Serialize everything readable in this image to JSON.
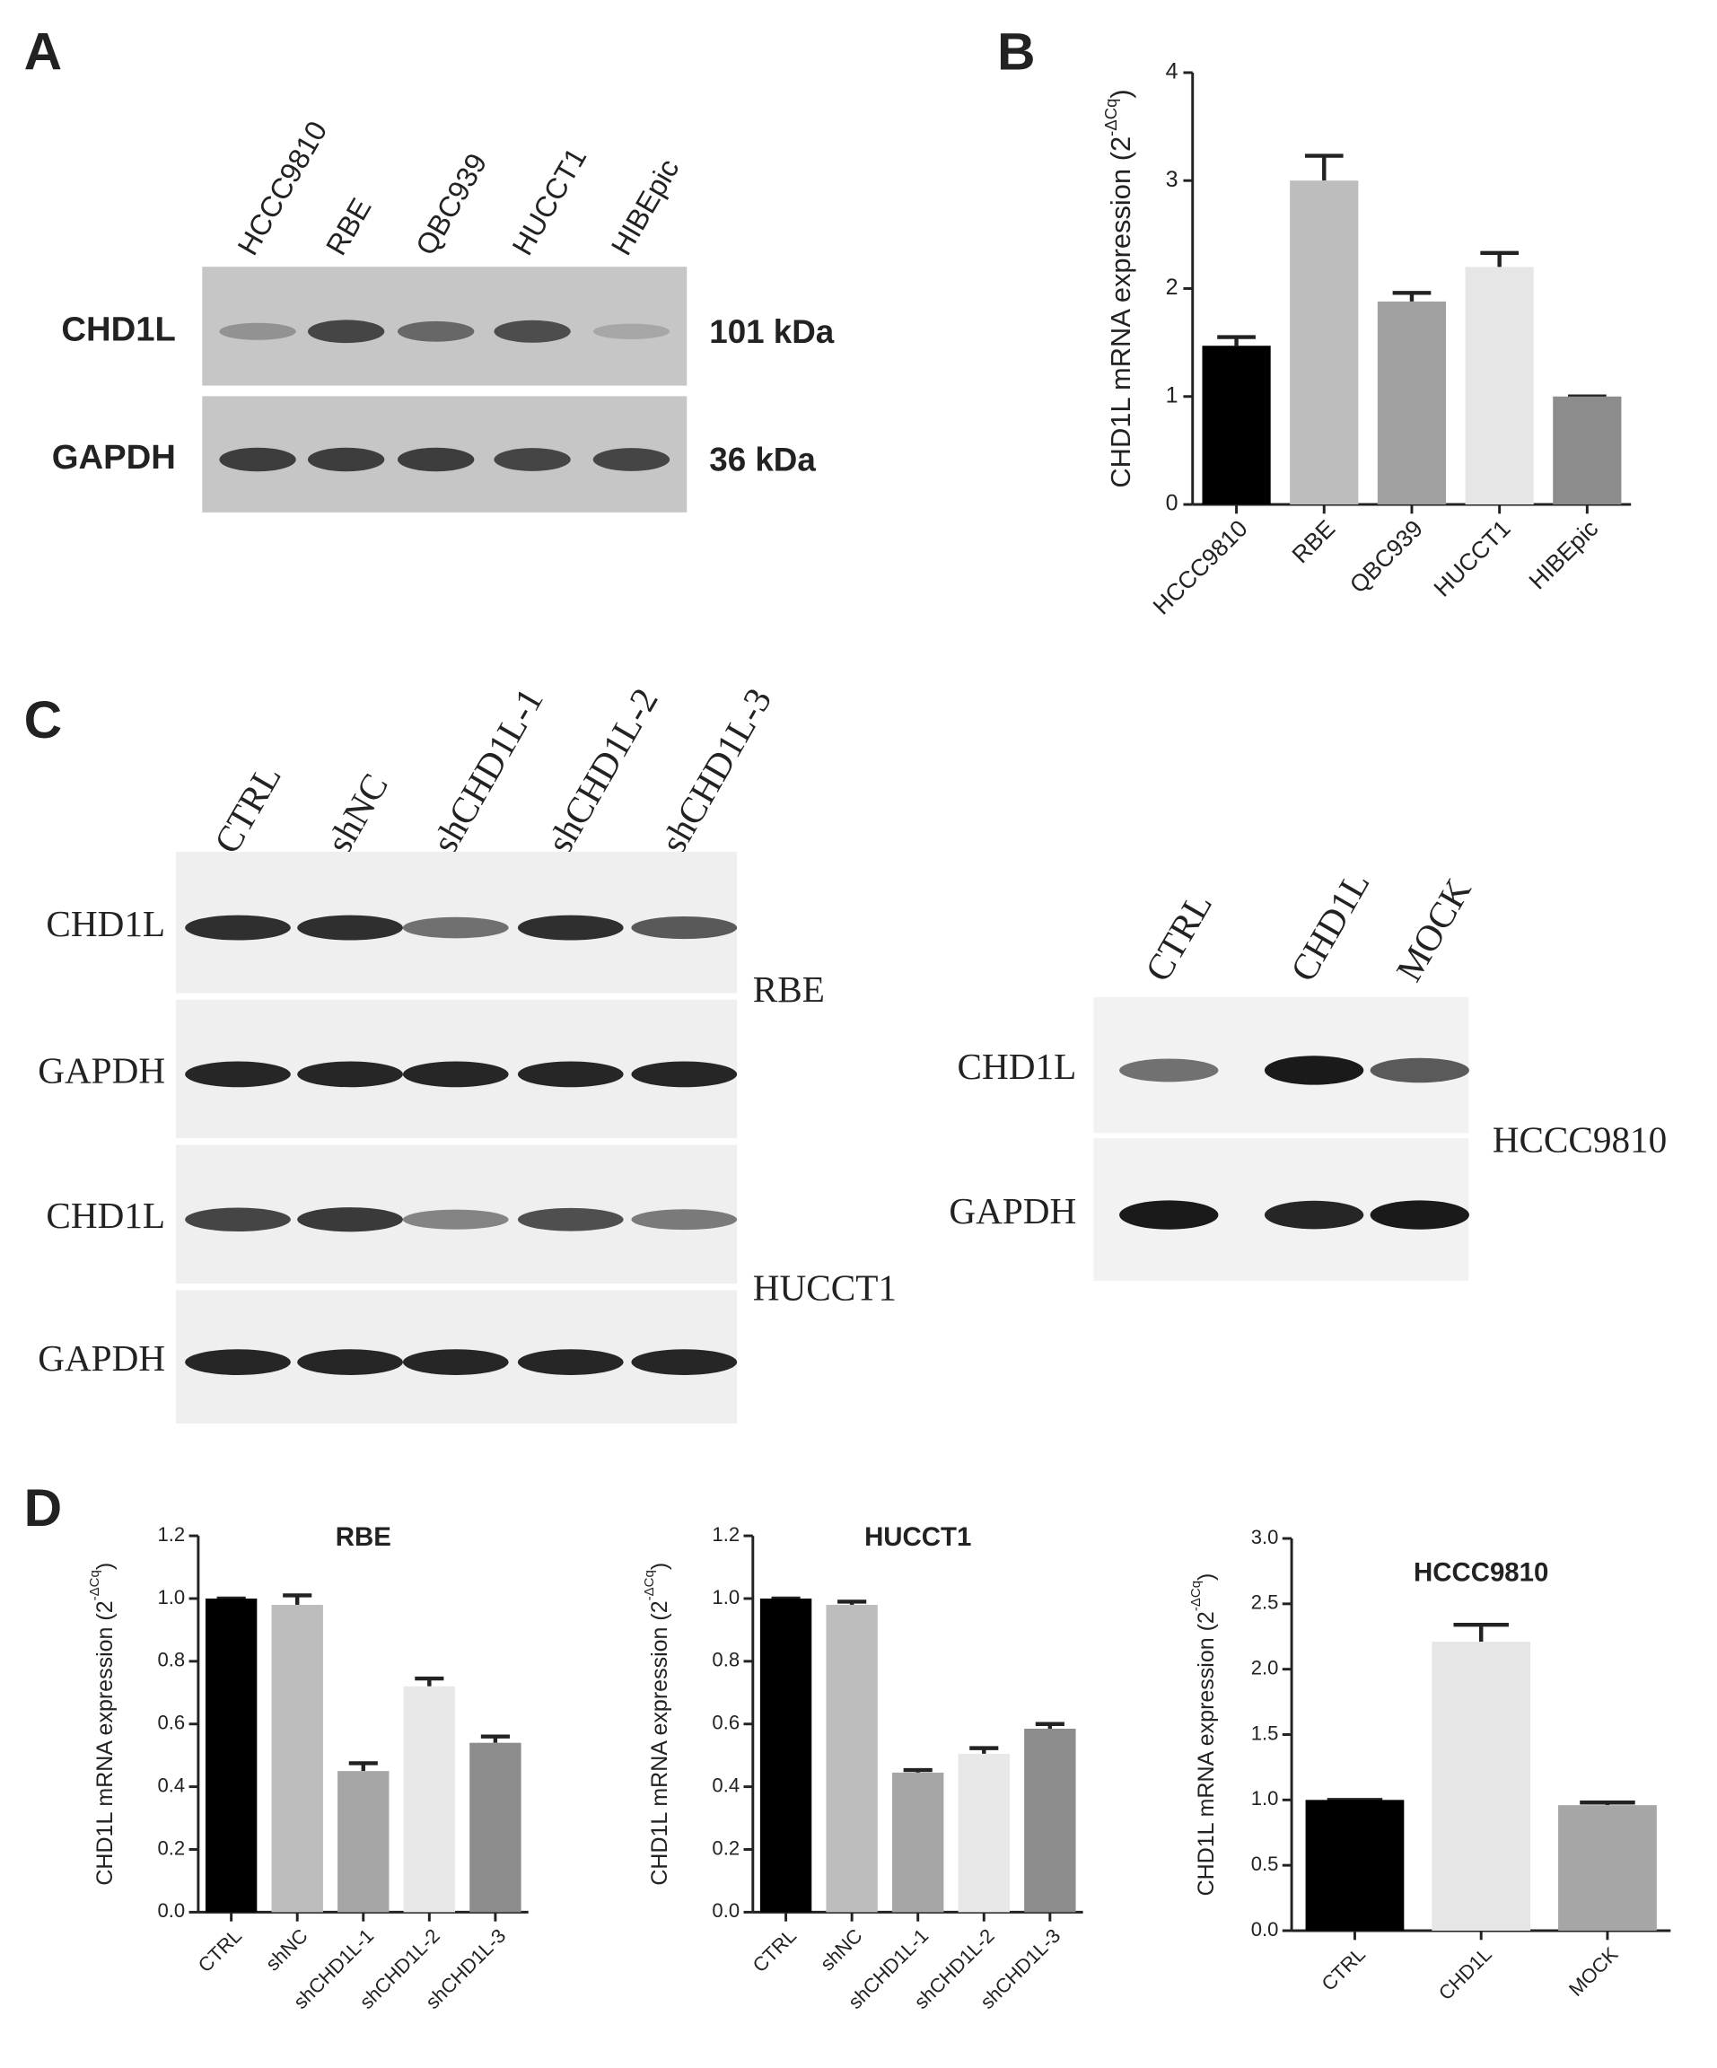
{
  "panel_labels": [
    "A",
    "B",
    "C",
    "D"
  ],
  "blots": [
    {
      "lanes": [
        "HCCC9810",
        "RBE",
        "QBC939",
        "HUCCT1",
        "HIBEpic"
      ],
      "rows": [
        "CHD1L",
        "GAPDH"
      ],
      "sizes": [
        "101 kDa",
        "36 kDa"
      ]
    },
    {
      "lanes": [
        "CTRL",
        "shNC",
        "shCHD1L-1",
        "shCHD1L-2",
        "shCHD1L-3"
      ],
      "rows": [
        "CHD1L",
        "GAPDH",
        "CHD1L",
        "GAPDH"
      ],
      "cell_lines": [
        "RBE",
        "HUCCT1"
      ]
    },
    {
      "lanes": [
        "CTRL",
        "CHD1L",
        "MOCK"
      ],
      "rows": [
        "CHD1L",
        "GAPDH"
      ],
      "cell_lines": [
        "HCCC9810"
      ]
    }
  ],
  "chart_data": [
    {
      "type": "bar",
      "ylabel": {
        "text": "CHD1L mRNA expression (2",
        "sup": "-ΔCq",
        "close": ")"
      },
      "categories": [
        "HCCC9810",
        "RBE",
        "QBC939",
        "HUCCT1",
        "HIBEpic"
      ],
      "values": [
        1.47,
        3.0,
        1.88,
        2.2,
        1.0
      ],
      "errors": [
        0.08,
        0.23,
        0.08,
        0.13,
        0
      ],
      "colors": [
        "#000000",
        "#bdbdbd",
        "#a0a0a0",
        "#e6e6e6",
        "#8c8c8c"
      ],
      "ylim": [
        0,
        4
      ],
      "yticks": [
        0,
        1,
        2,
        3,
        4
      ]
    },
    {
      "type": "bar",
      "title": "RBE",
      "ylabel": {
        "text": "CHD1L mRNA expression (2",
        "sup": "-ΔCq",
        "close": ")"
      },
      "categories": [
        "CTRL",
        "shNC",
        "shCHD1L-1",
        "shCHD1L-2",
        "shCHD1L-3"
      ],
      "values": [
        1.0,
        0.98,
        0.45,
        0.72,
        0.54
      ],
      "errors": [
        0,
        0.03,
        0.025,
        0.025,
        0.02
      ],
      "colors": [
        "#000000",
        "#bdbdbd",
        "#a6a6a6",
        "#e8e8e8",
        "#8c8c8c"
      ],
      "ylim": [
        0,
        1.2
      ],
      "yticks": [
        {
          "value": 0,
          "label": "0.0"
        },
        0.2,
        0.4,
        0.6,
        0.8,
        {
          "value": 1,
          "label": "1.0"
        },
        1.2
      ]
    },
    {
      "type": "bar",
      "title": "HUCCT1",
      "ylabel": {
        "text": "CHD1L mRNA expression (2",
        "sup": "-ΔCq",
        "close": ")"
      },
      "categories": [
        "CTRL",
        "shNC",
        "shCHD1L-1",
        "shCHD1L-2",
        "shCHD1L-3"
      ],
      "values": [
        1.0,
        0.98,
        0.445,
        0.505,
        0.585
      ],
      "errors": [
        0,
        0.01,
        0.008,
        0.018,
        0.015
      ],
      "colors": [
        "#000000",
        "#bdbdbd",
        "#a6a6a6",
        "#e8e8e8",
        "#8c8c8c"
      ],
      "ylim": [
        0,
        1.2
      ],
      "yticks": [
        {
          "value": 0,
          "label": "0.0"
        },
        0.2,
        0.4,
        0.6,
        0.8,
        {
          "value": 1,
          "label": "1.0"
        },
        1.2
      ]
    },
    {
      "type": "bar",
      "title": "HCCC9810",
      "ylabel": {
        "text": "CHD1L mRNA expression (2",
        "sup": "-ΔCq",
        "close": ")"
      },
      "categories": [
        "CTRL",
        "CHD1L",
        "MOCK"
      ],
      "values": [
        1.0,
        2.21,
        0.96
      ],
      "errors": [
        0,
        0.13,
        0.02
      ],
      "colors": [
        "#000000",
        "#e6e6e6",
        "#a6a6a6"
      ],
      "ylim": [
        0,
        3
      ],
      "yticks": [
        {
          "value": 0,
          "label": "0.0"
        },
        0.5,
        {
          "value": 1,
          "label": "1.0"
        },
        1.5,
        {
          "value": 2,
          "label": "2.0"
        },
        2.5,
        {
          "value": 3,
          "label": "3.0"
        }
      ]
    }
  ]
}
